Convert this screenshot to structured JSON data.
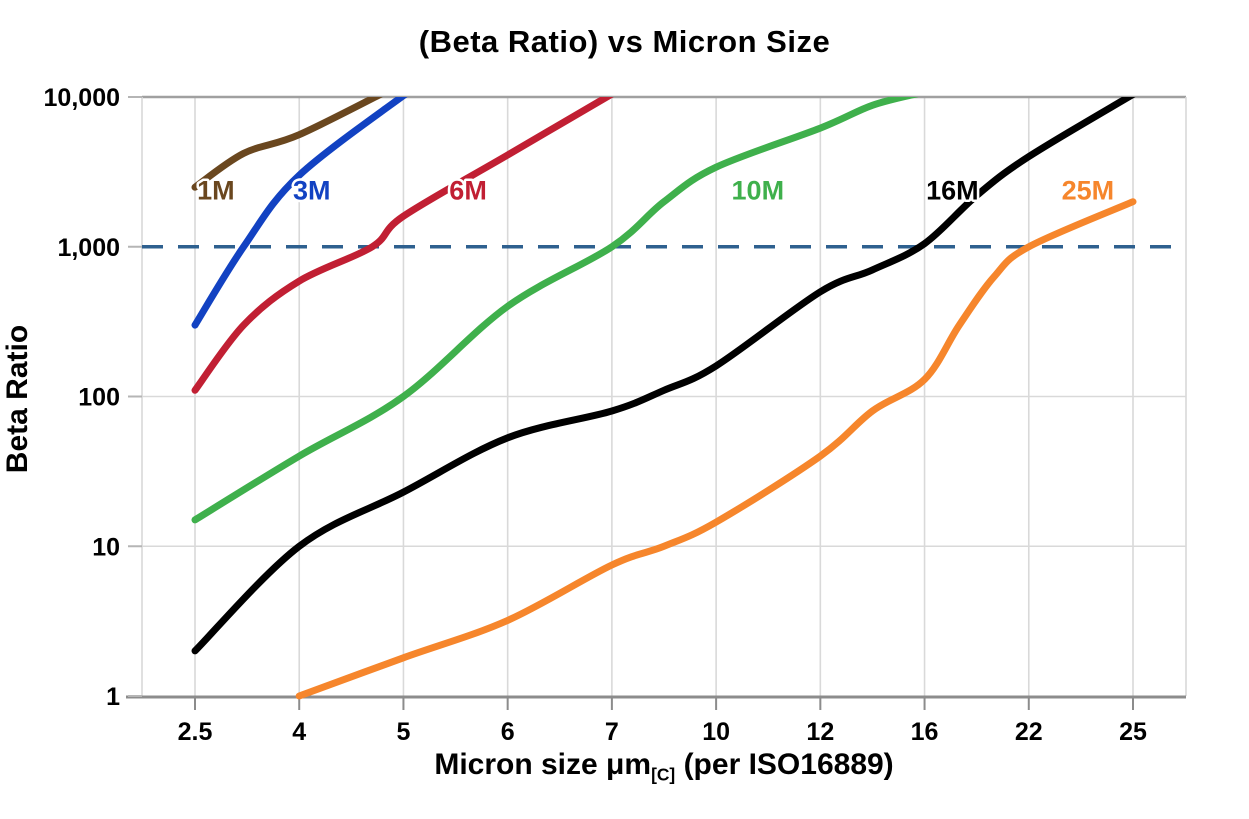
{
  "chart_data": {
    "type": "line",
    "title": "(Beta Ratio) vs Micron Size",
    "ylabel": "Beta Ratio",
    "xlabel": "Micron size μm[C] (per ISO16889)",
    "xlabel_parts": {
      "pre": "Micron size μm",
      "sub": "[C]",
      "post": " (per ISO16889)"
    },
    "x_scale": "categorical-even-spacing",
    "y_scale": "log",
    "x_categories": [
      2.5,
      4,
      5,
      6,
      7,
      10,
      12,
      16,
      22,
      25
    ],
    "x_tick_labels": [
      "2.5",
      "4",
      "5",
      "6",
      "7",
      "10",
      "12",
      "16",
      "22",
      "25"
    ],
    "y_ticks": [
      1,
      10,
      100,
      1000,
      10000
    ],
    "y_tick_labels": [
      "1",
      "10",
      "100",
      "1,000",
      "10,000"
    ],
    "ylim": [
      1,
      10000
    ],
    "grid": true,
    "grid_color": "#d9d9d9",
    "frame_color": "#a0a0a0",
    "axis_color": "#8c8c8c",
    "reference_line": {
      "value": 1000,
      "style": "dashed",
      "color": "#2e608f"
    },
    "legend_position": "inline-labels",
    "series": [
      {
        "name": "1M",
        "color": "#6a471f",
        "label_x": 2.8,
        "label_y": 2300,
        "points": [
          [
            2.5,
            2500
          ],
          [
            3.2,
            4200
          ],
          [
            4,
            5600
          ],
          [
            4.9,
            11500
          ]
        ]
      },
      {
        "name": "3M",
        "color": "#1242c2",
        "label_x": 4.12,
        "label_y": 2300,
        "points": [
          [
            2.5,
            300
          ],
          [
            3.2,
            1000
          ],
          [
            4,
            3000
          ],
          [
            5.1,
            11500
          ]
        ]
      },
      {
        "name": "6M",
        "color": "#c11f33",
        "label_x": 5.62,
        "label_y": 2300,
        "points": [
          [
            2.5,
            110
          ],
          [
            3.2,
            300
          ],
          [
            4,
            590
          ],
          [
            4.7,
            1000
          ],
          [
            5,
            1600
          ],
          [
            6,
            4100
          ],
          [
            7.1,
            10800
          ]
        ]
      },
      {
        "name": "10M",
        "color": "#3fb04c",
        "label_x": 10.8,
        "label_y": 2300,
        "points": [
          [
            2.5,
            15
          ],
          [
            4,
            40
          ],
          [
            5,
            100
          ],
          [
            6,
            400
          ],
          [
            7,
            1000
          ],
          [
            8.5,
            2000
          ],
          [
            10,
            3400
          ],
          [
            12,
            6200
          ],
          [
            14,
            8800
          ],
          [
            15.8,
            10600
          ]
        ]
      },
      {
        "name": "16M",
        "color": "#000000",
        "label_x": 17.6,
        "label_y": 2300,
        "points": [
          [
            2.5,
            2
          ],
          [
            4,
            10
          ],
          [
            5,
            23
          ],
          [
            6,
            53
          ],
          [
            7,
            80
          ],
          [
            8.5,
            110
          ],
          [
            10,
            160
          ],
          [
            12,
            500
          ],
          [
            14,
            700
          ],
          [
            16,
            1050
          ],
          [
            19,
            2200
          ],
          [
            22,
            4000
          ],
          [
            25,
            10400
          ]
        ]
      },
      {
        "name": "25M",
        "color": "#f6862c",
        "label_x": 23.7,
        "label_y": 2300,
        "points": [
          [
            4,
            1
          ],
          [
            5,
            1.8
          ],
          [
            6,
            3.2
          ],
          [
            7,
            7.5
          ],
          [
            8.5,
            10
          ],
          [
            10,
            14.5
          ],
          [
            12,
            40
          ],
          [
            14,
            80
          ],
          [
            16,
            130
          ],
          [
            18,
            300
          ],
          [
            20,
            630
          ],
          [
            22,
            1000
          ],
          [
            25,
            2000
          ]
        ]
      }
    ]
  }
}
